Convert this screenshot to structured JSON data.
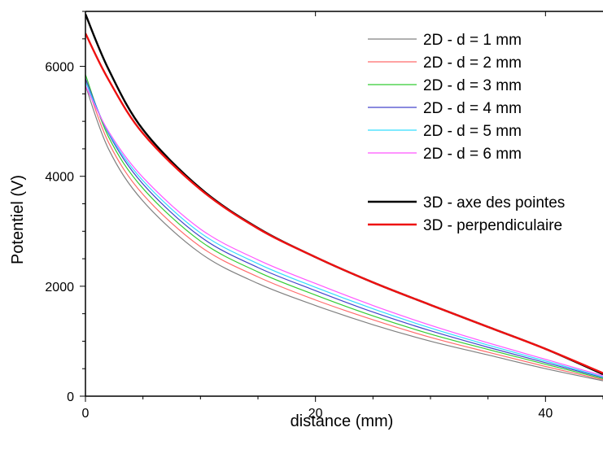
{
  "chart_data": {
    "type": "line",
    "xlabel": "distance (mm)",
    "ylabel": "Potentiel (V)",
    "xlim": [
      0,
      45
    ],
    "ylim": [
      0,
      7000
    ],
    "xticks": [
      0,
      20,
      40
    ],
    "yticks": [
      0,
      2000,
      4000,
      6000
    ],
    "legend_position": "top-right",
    "grid": false,
    "series": [
      {
        "name": "2D - d = 1 mm",
        "color": "#808080",
        "width": 1.2,
        "x": [
          0,
          2,
          5,
          10,
          15,
          20,
          25,
          30,
          35,
          40,
          45
        ],
        "y": [
          5650,
          4500,
          3550,
          2600,
          2050,
          1650,
          1300,
          1000,
          750,
          500,
          280
        ]
      },
      {
        "name": "2D - d = 2 mm",
        "color": "#ff6b6b",
        "width": 1.2,
        "x": [
          0,
          2,
          5,
          10,
          15,
          20,
          25,
          30,
          35,
          40,
          45
        ],
        "y": [
          5750,
          4620,
          3670,
          2720,
          2170,
          1750,
          1390,
          1070,
          800,
          540,
          300
        ]
      },
      {
        "name": "2D - d = 3 mm",
        "color": "#33cc33",
        "width": 1.2,
        "x": [
          0,
          2,
          5,
          10,
          15,
          20,
          25,
          30,
          35,
          40,
          45
        ],
        "y": [
          5850,
          4720,
          3780,
          2820,
          2260,
          1840,
          1460,
          1130,
          850,
          580,
          320
        ]
      },
      {
        "name": "2D - d = 4 mm",
        "color": "#4444cc",
        "width": 1.2,
        "x": [
          0,
          2,
          5,
          10,
          15,
          20,
          25,
          30,
          35,
          40,
          45
        ],
        "y": [
          5780,
          4780,
          3860,
          2900,
          2340,
          1920,
          1530,
          1190,
          890,
          610,
          340
        ]
      },
      {
        "name": "2D - d = 5 mm",
        "color": "#33ddff",
        "width": 1.2,
        "x": [
          0,
          2,
          5,
          10,
          15,
          20,
          25,
          30,
          35,
          40,
          45
        ],
        "y": [
          5720,
          4800,
          3920,
          2970,
          2410,
          1980,
          1590,
          1240,
          930,
          640,
          350
        ]
      },
      {
        "name": "2D - d = 6 mm",
        "color": "#ff55ff",
        "width": 1.2,
        "x": [
          0,
          2,
          5,
          10,
          15,
          20,
          25,
          30,
          35,
          40,
          45
        ],
        "y": [
          5650,
          4820,
          3980,
          3040,
          2480,
          2050,
          1650,
          1290,
          970,
          670,
          370
        ]
      },
      {
        "name": "3D - axe des pointes",
        "color": "#000000",
        "width": 2.4,
        "x": [
          0,
          2,
          5,
          10,
          15,
          20,
          25,
          30,
          35,
          40,
          45
        ],
        "y": [
          6950,
          5950,
          4850,
          3780,
          3060,
          2530,
          2070,
          1660,
          1260,
          860,
          400
        ]
      },
      {
        "name": "3D - perpendiculaire",
        "color": "#ee1111",
        "width": 2.4,
        "x": [
          0,
          2,
          5,
          10,
          15,
          20,
          25,
          30,
          35,
          40,
          45
        ],
        "y": [
          6600,
          5760,
          4780,
          3760,
          3050,
          2530,
          2070,
          1660,
          1260,
          860,
          420
        ]
      }
    ]
  }
}
